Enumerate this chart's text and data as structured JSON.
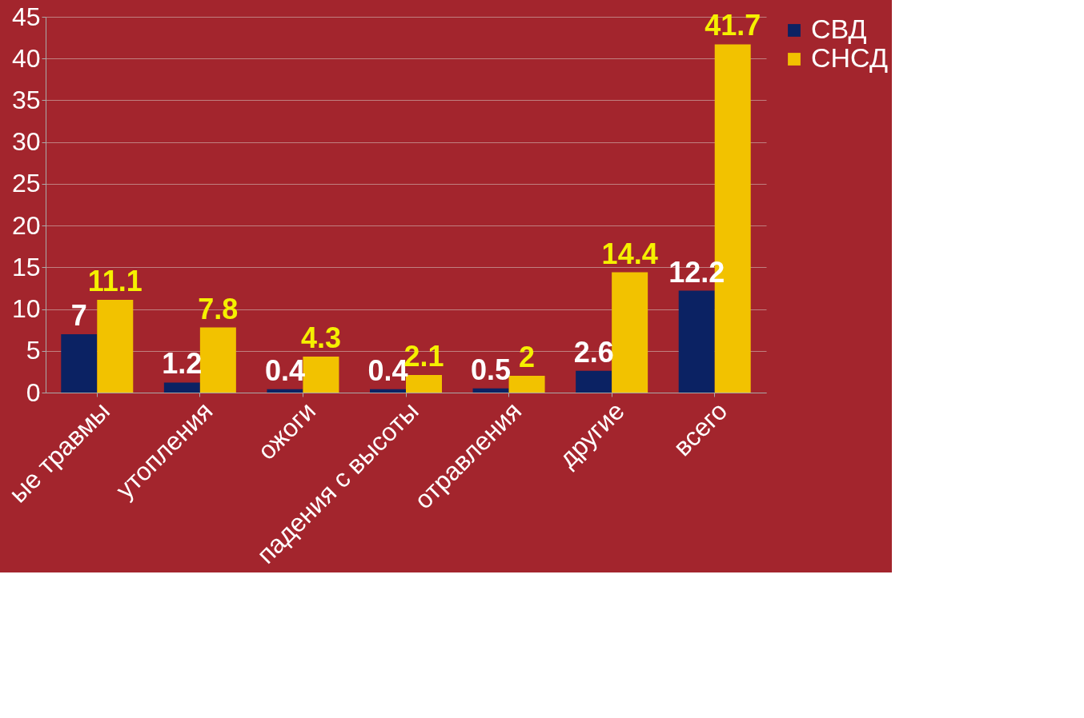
{
  "chart_data": {
    "type": "bar",
    "categories": [
      "ые травмы",
      "утопления",
      "ожоги",
      "падения с высоты",
      "отравления",
      "другие",
      "всего"
    ],
    "series": [
      {
        "name": "СВД",
        "color": "#0b2263",
        "values": [
          7,
          1.2,
          0.4,
          0.4,
          0.5,
          2.6,
          12.2
        ]
      },
      {
        "name": "СНСД",
        "color": "#f2c200",
        "values": [
          11.1,
          7.8,
          4.3,
          2.1,
          2,
          14.4,
          41.7
        ]
      }
    ],
    "ylim": [
      0,
      45
    ],
    "yticks": [
      0,
      5,
      10,
      15,
      20,
      25,
      30,
      35,
      40,
      45
    ],
    "grid": "y",
    "legend": "right",
    "data_labels": true
  }
}
